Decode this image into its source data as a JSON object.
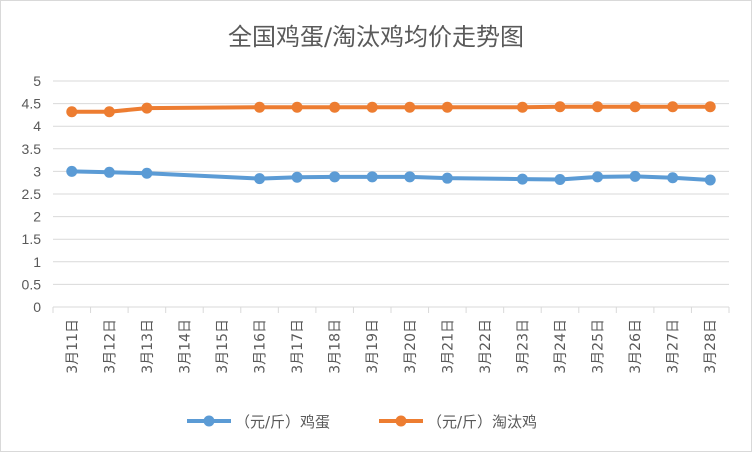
{
  "chart_data": {
    "type": "line",
    "title": "全国鸡蛋/淘汰鸡均价走势图",
    "categories": [
      "3月11日",
      "3月12日",
      "3月13日",
      "3月14日",
      "3月15日",
      "3月16日",
      "3月17日",
      "3月18日",
      "3月19日",
      "3月20日",
      "3月21日",
      "3月22日",
      "3月23日",
      "3月24日",
      "3月25日",
      "3月26日",
      "3月27日",
      "3月28日"
    ],
    "yticks": [
      "0",
      "0.5",
      "1",
      "1.5",
      "2",
      "2.5",
      "3",
      "3.5",
      "4",
      "4.5",
      "5"
    ],
    "ylim": [
      0,
      5
    ],
    "grid": true,
    "legend_position": "bottom",
    "series": [
      {
        "name": "（元/斤）鸡蛋",
        "color": "#5B9BD5",
        "values": [
          3.0,
          2.98,
          2.96,
          null,
          null,
          2.84,
          2.87,
          2.88,
          2.88,
          2.88,
          2.85,
          null,
          2.83,
          2.82,
          2.88,
          2.89,
          2.86,
          2.81
        ]
      },
      {
        "name": "（元/斤）淘汰鸡",
        "color": "#ED7D31",
        "values": [
          4.32,
          4.32,
          4.4,
          null,
          null,
          4.42,
          4.42,
          4.42,
          4.42,
          4.42,
          4.42,
          null,
          4.42,
          4.43,
          4.43,
          4.43,
          4.43,
          4.43
        ]
      }
    ]
  }
}
